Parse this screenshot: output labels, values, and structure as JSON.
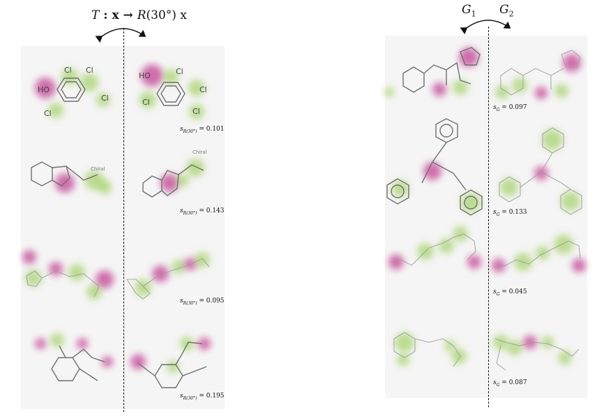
{
  "left": {
    "title_T": "T",
    "title_mid": " : x → ",
    "title_R": "R",
    "title_rest": "(30°) x",
    "scores": [
      {
        "label": "s",
        "sub": "R(30°)",
        "value": "= 0.101"
      },
      {
        "label": "s",
        "sub": "R(30°)",
        "value": "= 0.143"
      },
      {
        "label": "s",
        "sub": "R(30°)",
        "value": "= 0.095"
      },
      {
        "label": "s",
        "sub": "R(30°)",
        "value": "= 0.195"
      }
    ],
    "atoms": [
      "Cl",
      "Cl",
      "HO",
      "Cl",
      "Cl",
      "Cl",
      "HO",
      "Cl",
      "Cl",
      "Cl",
      "Chiral",
      "Chiral"
    ]
  },
  "right": {
    "title_g1": "G",
    "title_g1_sub": "1",
    "title_g2": "G",
    "title_g2_sub": "2",
    "scores": [
      {
        "label": "s",
        "sub": "G",
        "value": "= 0.097"
      },
      {
        "label": "s",
        "sub": "G",
        "value": "= 0.133"
      },
      {
        "label": "s",
        "sub": "G",
        "value": "= 0.045"
      },
      {
        "label": "s",
        "sub": "G",
        "value": "= 0.087"
      }
    ]
  },
  "colors": {
    "magenta": "#b0006e",
    "green": "#8cc63f",
    "panel": "#f5f5f5"
  }
}
